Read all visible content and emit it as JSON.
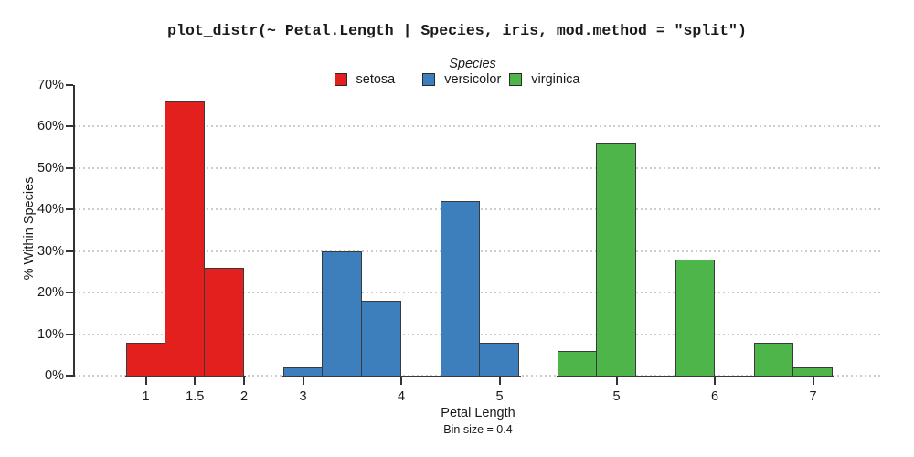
{
  "chart_data": {
    "type": "bar",
    "subtype": "histogram-faceted",
    "title": "plot_distr(~ Petal.Length | Species, iris, mod.method = \"split\")",
    "ylabel": "% Within Species",
    "xlabel": "Petal Length",
    "xlabel_sub": "Bin size = 0.4",
    "bin_size": 0.4,
    "ylim": [
      0,
      70
    ],
    "yticks": [
      0,
      10,
      20,
      30,
      40,
      50,
      60,
      70
    ],
    "ytick_suffix": "%",
    "grid": "horizontal dotted lines at 0%-60%",
    "legend": {
      "title": "Species",
      "position": "top-center"
    },
    "axis_color": "#333333",
    "grid_color": "#cccccc",
    "bar_border_color": "#3a3a3a",
    "series": [
      {
        "name": "setosa",
        "color": "#e4201e",
        "x_range": [
          0.8,
          2.0
        ],
        "xticks": [
          1,
          1.5,
          2
        ],
        "bins": [
          {
            "from": 0.8,
            "to": 1.2,
            "pct": 8
          },
          {
            "from": 1.2,
            "to": 1.6,
            "pct": 66
          },
          {
            "from": 1.6,
            "to": 2.0,
            "pct": 26
          }
        ]
      },
      {
        "name": "versicolor",
        "color": "#3d7ebc",
        "x_range": [
          2.8,
          5.2
        ],
        "xticks": [
          3,
          4,
          5
        ],
        "bins": [
          {
            "from": 2.8,
            "to": 3.2,
            "pct": 2
          },
          {
            "from": 3.2,
            "to": 3.6,
            "pct": 30
          },
          {
            "from": 3.6,
            "to": 4.0,
            "pct": 18
          },
          {
            "from": 4.0,
            "to": 4.4,
            "pct": 0
          },
          {
            "from": 4.4,
            "to": 4.8,
            "pct": 42
          },
          {
            "from": 4.8,
            "to": 5.2,
            "pct": 8
          }
        ]
      },
      {
        "name": "virginica",
        "color": "#4eb54b",
        "x_range": [
          4.4,
          7.2
        ],
        "xticks": [
          5,
          6,
          7
        ],
        "bins": [
          {
            "from": 4.4,
            "to": 4.8,
            "pct": 6
          },
          {
            "from": 4.8,
            "to": 5.2,
            "pct": 56
          },
          {
            "from": 5.2,
            "to": 5.6,
            "pct": 0
          },
          {
            "from": 5.6,
            "to": 6.0,
            "pct": 28
          },
          {
            "from": 6.0,
            "to": 6.4,
            "pct": 0
          },
          {
            "from": 6.4,
            "to": 6.8,
            "pct": 8
          },
          {
            "from": 6.8,
            "to": 7.2,
            "pct": 2
          }
        ]
      }
    ]
  }
}
